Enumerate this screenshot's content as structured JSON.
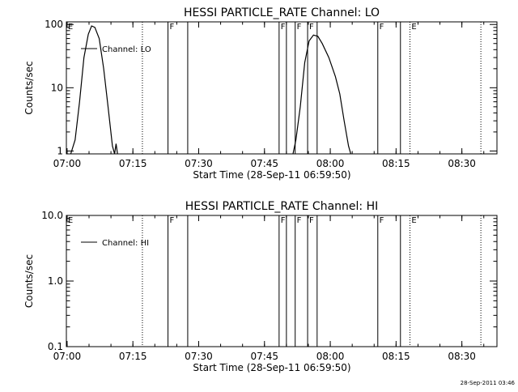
{
  "footer": {
    "timestamp": "28-Sep-2011 03:46"
  },
  "chart_data": [
    {
      "type": "line",
      "title": "HESSI PARTICLE_RATE Channel: LO",
      "xlabel": "Start Time (28-Sep-11 06:59:50)",
      "ylabel": "Counts/sec",
      "yscale": "log",
      "xlim": [
        "06:59:50",
        "08:38:00"
      ],
      "ylim": [
        0.9,
        110
      ],
      "x_ticks": [
        "07:00",
        "07:15",
        "07:30",
        "07:45",
        "08:00",
        "08:15",
        "08:30"
      ],
      "y_ticks": [
        {
          "value": 1,
          "label": "1"
        },
        {
          "value": 10,
          "label": "10"
        },
        {
          "value": 100,
          "label": "100"
        }
      ],
      "legend": {
        "placement": "top-left",
        "entries": [
          "Channel: LO"
        ]
      },
      "series": [
        {
          "name": "Channel: LO",
          "segments": [
            [
              [
                "07:00:50",
                0.9
              ],
              [
                "07:01:50",
                1.5
              ],
              [
                "07:02:50",
                6
              ],
              [
                "07:03:50",
                30
              ],
              [
                "07:04:50",
                70
              ],
              [
                "07:05:35",
                95
              ],
              [
                "07:06:20",
                90
              ],
              [
                "07:07:20",
                60
              ],
              [
                "07:08:20",
                20
              ],
              [
                "07:09:20",
                5
              ],
              [
                "07:10:20",
                1.2
              ],
              [
                "07:10:50",
                0.9
              ]
            ],
            [
              [
                "07:10:50",
                0.9
              ],
              [
                "07:11:10",
                1.3
              ],
              [
                "07:11:30",
                0.9
              ]
            ],
            [
              [
                "07:51:30",
                0.9
              ],
              [
                "07:52:10",
                1.5
              ],
              [
                "07:53:10",
                5
              ],
              [
                "07:54:10",
                25
              ],
              [
                "07:55:10",
                55
              ],
              [
                "07:56:10",
                68
              ],
              [
                "07:57:10",
                65
              ],
              [
                "07:58:10",
                50
              ],
              [
                "07:59:40",
                30
              ],
              [
                "08:01:10",
                15
              ],
              [
                "08:02:10",
                8
              ],
              [
                "08:03:10",
                3
              ],
              [
                "08:04:10",
                1.2
              ],
              [
                "08:04:40",
                0.9
              ]
            ]
          ]
        }
      ],
      "annotations": {
        "solid_lines": [
          "07:23:00",
          "07:27:30",
          "07:48:20",
          "07:50:00",
          "07:52:00",
          "07:54:50",
          "07:57:00",
          "08:10:50",
          "08:16:00"
        ],
        "dotted_lines": [
          "07:17:10",
          "08:18:10",
          "08:34:20"
        ],
        "flags": [
          {
            "text": "E",
            "time": "07:00:00"
          },
          {
            "text": "F",
            "time": "07:23:10"
          },
          {
            "text": "F",
            "time": "07:48:30"
          },
          {
            "text": "F",
            "time": "07:52:10"
          },
          {
            "text": "F",
            "time": "07:55:00"
          },
          {
            "text": "F",
            "time": "08:11:00"
          },
          {
            "text": "E",
            "time": "08:18:20"
          }
        ]
      }
    },
    {
      "type": "line",
      "title": "HESSI PARTICLE_RATE Channel: HI",
      "xlabel": "Start Time (28-Sep-11 06:59:50)",
      "ylabel": "Counts/sec",
      "yscale": "log",
      "xlim": [
        "06:59:50",
        "08:38:00"
      ],
      "ylim": [
        0.1,
        10
      ],
      "x_ticks": [
        "07:00",
        "07:15",
        "07:30",
        "07:45",
        "08:00",
        "08:15",
        "08:30"
      ],
      "y_ticks": [
        {
          "value": 0.1,
          "label": "0.1"
        },
        {
          "value": 1,
          "label": "1.0"
        },
        {
          "value": 10,
          "label": "10.0"
        }
      ],
      "legend": {
        "placement": "top-left",
        "entries": [
          "Channel: HI"
        ]
      },
      "series": [
        {
          "name": "Channel: HI",
          "segments": []
        }
      ],
      "annotations": {
        "solid_lines": [
          "07:23:00",
          "07:27:30",
          "07:48:20",
          "07:50:00",
          "07:52:00",
          "07:54:50",
          "07:57:00",
          "08:10:50",
          "08:16:00"
        ],
        "dotted_lines": [
          "07:17:10",
          "08:18:10",
          "08:34:20"
        ],
        "flags": [
          {
            "text": "E",
            "time": "07:00:00"
          },
          {
            "text": "F",
            "time": "07:23:10"
          },
          {
            "text": "F",
            "time": "07:48:30"
          },
          {
            "text": "F",
            "time": "07:52:10"
          },
          {
            "text": "F",
            "time": "07:55:00"
          },
          {
            "text": "F",
            "time": "08:11:00"
          },
          {
            "text": "E",
            "time": "08:18:20"
          }
        ]
      }
    }
  ]
}
